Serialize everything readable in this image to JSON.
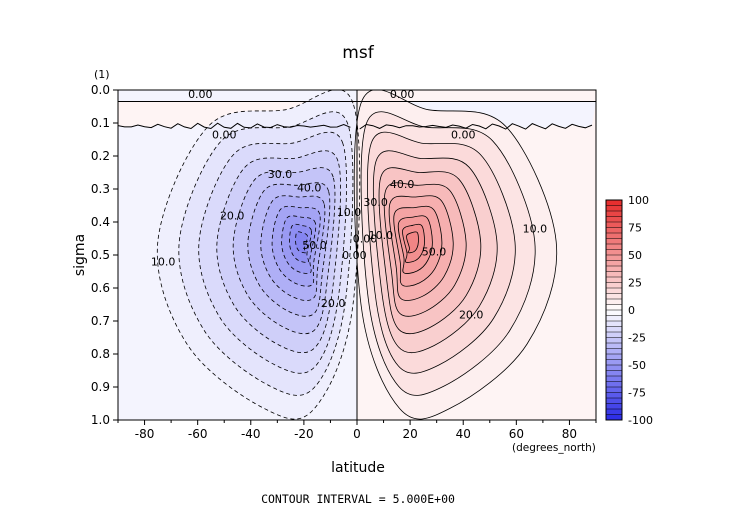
{
  "chart_data": {
    "type": "contour",
    "title": "msf",
    "units_label": "(1)",
    "xlabel": "latitude",
    "x_units": "(degrees_north)",
    "ylabel": "sigma",
    "xlim": [
      -90,
      90
    ],
    "ylim": [
      1.0,
      0.0
    ],
    "x_ticks": [
      -80,
      -60,
      -40,
      -20,
      0,
      20,
      40,
      60,
      80
    ],
    "y_ticks": [
      "0.0",
      "0.1",
      "0.2",
      "0.3",
      "0.4",
      "0.5",
      "0.6",
      "0.7",
      "0.8",
      "0.9",
      "1.0"
    ],
    "footer": "CONTOUR INTERVAL = 5.000E+00",
    "contour_interval": 5.0,
    "cells": [
      {
        "name": "southern-cell",
        "center_lat": -21,
        "center_sigma": 0.46,
        "peak": -57
      },
      {
        "name": "northern-cell",
        "center_lat": 21,
        "center_sigma": 0.46,
        "peak": 57
      }
    ],
    "contour_labels": [
      {
        "text": "0.00",
        "lat": -59,
        "sigma": 0.012
      },
      {
        "text": "0.00",
        "lat": 17,
        "sigma": 0.012
      },
      {
        "text": "0.00",
        "lat": -50,
        "sigma": 0.135
      },
      {
        "text": "0.00",
        "lat": 40,
        "sigma": 0.135
      },
      {
        "text": "30.0",
        "lat": -29,
        "sigma": 0.255
      },
      {
        "text": "40.0",
        "lat": -18,
        "sigma": 0.295
      },
      {
        "text": "20.0",
        "lat": -47,
        "sigma": 0.38
      },
      {
        "text": "10.0",
        "lat": -73,
        "sigma": 0.52
      },
      {
        "text": "50.0",
        "lat": -16,
        "sigma": 0.47
      },
      {
        "text": "10.0",
        "lat": -3,
        "sigma": 0.37
      },
      {
        "text": "0.00",
        "lat": -1,
        "sigma": 0.5
      },
      {
        "text": "20.0",
        "lat": -9,
        "sigma": 0.645
      },
      {
        "text": "30.0",
        "lat": 7,
        "sigma": 0.34
      },
      {
        "text": "40.0",
        "lat": 17,
        "sigma": 0.285
      },
      {
        "text": "0.00",
        "lat": 3,
        "sigma": 0.45
      },
      {
        "text": "10.0",
        "lat": 9,
        "sigma": 0.44
      },
      {
        "text": "50.0",
        "lat": 29,
        "sigma": 0.49
      },
      {
        "text": "10.0",
        "lat": 67,
        "sigma": 0.42
      },
      {
        "text": "20.0",
        "lat": 43,
        "sigma": 0.68
      }
    ],
    "colorbar": {
      "ticks": [
        "100",
        "75",
        "50",
        "25",
        "0",
        "-25",
        "-50",
        "-75",
        "-100"
      ],
      "min": -100,
      "max": 100,
      "colors": {
        "negative": "#2a2ae6",
        "zero": "#ffffff",
        "positive": "#e62a2a"
      }
    }
  }
}
